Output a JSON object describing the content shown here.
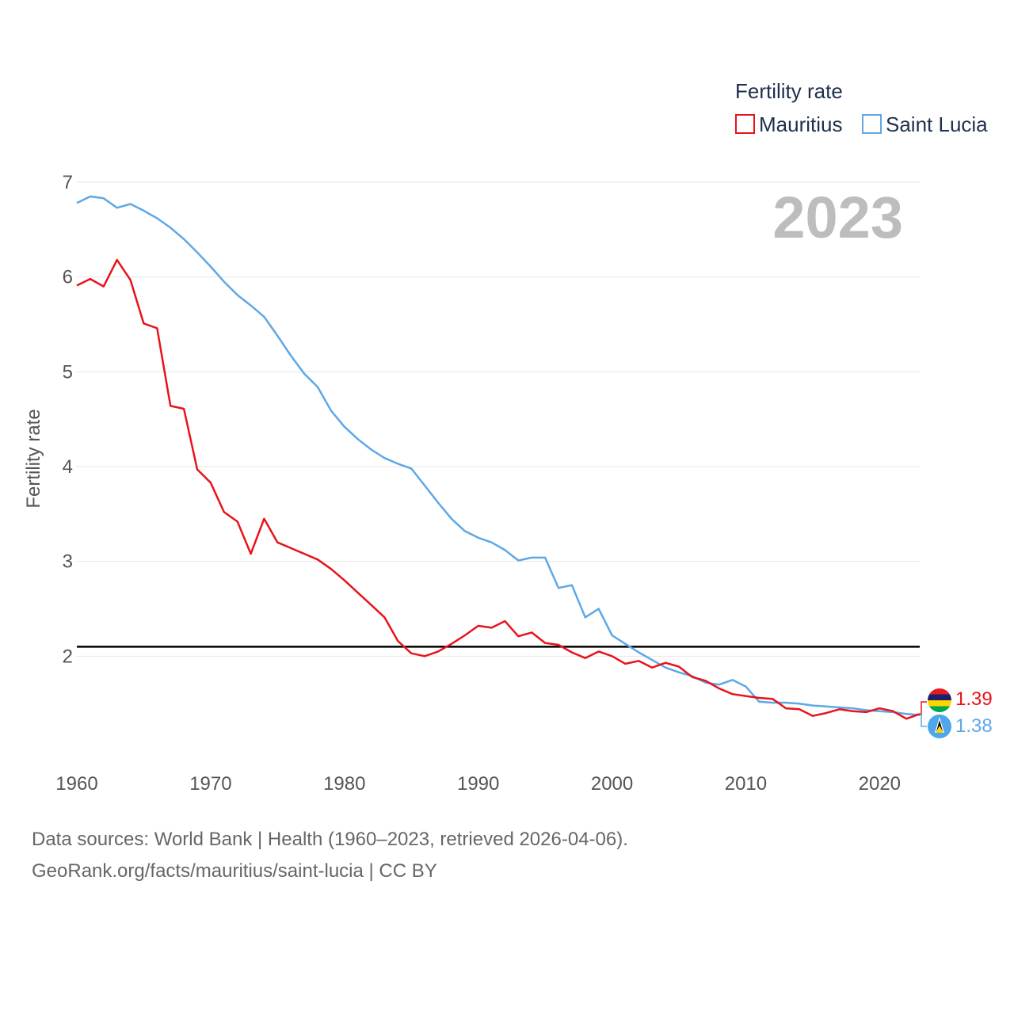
{
  "legend": {
    "title": "Fertility rate",
    "items": [
      {
        "label": "Mauritius",
        "color": "#e8131b"
      },
      {
        "label": "Saint Lucia",
        "color": "#5ea8e6"
      }
    ]
  },
  "year_label": "2023",
  "chart_data": {
    "type": "line",
    "title": "",
    "ylabel": "Fertility rate",
    "xlabel": "",
    "xlim": [
      1960,
      2023
    ],
    "ylim": [
      1,
      7
    ],
    "yticks": [
      2,
      3,
      4,
      5,
      6,
      7
    ],
    "xticks": [
      1960,
      1970,
      1980,
      1990,
      2000,
      2010,
      2020
    ],
    "reference_line": {
      "y": 2.1,
      "color": "#000000"
    },
    "x": [
      1960,
      1961,
      1962,
      1963,
      1964,
      1965,
      1966,
      1967,
      1968,
      1969,
      1970,
      1971,
      1972,
      1973,
      1974,
      1975,
      1976,
      1977,
      1978,
      1979,
      1980,
      1981,
      1982,
      1983,
      1984,
      1985,
      1986,
      1987,
      1988,
      1989,
      1990,
      1991,
      1992,
      1993,
      1994,
      1995,
      1996,
      1997,
      1998,
      1999,
      2000,
      2001,
      2002,
      2003,
      2004,
      2005,
      2006,
      2007,
      2008,
      2009,
      2010,
      2011,
      2012,
      2013,
      2014,
      2015,
      2016,
      2017,
      2018,
      2019,
      2020,
      2021,
      2022,
      2023
    ],
    "series": [
      {
        "name": "Mauritius",
        "color": "#e8131b",
        "end_label": "1.39",
        "values": [
          5.91,
          5.98,
          5.9,
          6.18,
          5.97,
          5.51,
          5.46,
          4.64,
          4.61,
          3.97,
          3.83,
          3.52,
          3.42,
          3.08,
          3.45,
          3.2,
          3.14,
          3.08,
          3.02,
          2.92,
          2.8,
          2.67,
          2.54,
          2.41,
          2.16,
          2.03,
          2.0,
          2.05,
          2.13,
          2.22,
          2.32,
          2.3,
          2.37,
          2.21,
          2.25,
          2.14,
          2.12,
          2.04,
          1.98,
          2.05,
          2.0,
          1.92,
          1.95,
          1.88,
          1.93,
          1.89,
          1.78,
          1.74,
          1.66,
          1.6,
          1.58,
          1.56,
          1.55,
          1.45,
          1.44,
          1.37,
          1.4,
          1.44,
          1.42,
          1.41,
          1.45,
          1.42,
          1.34,
          1.39
        ]
      },
      {
        "name": "Saint Lucia",
        "color": "#5ea8e6",
        "end_label": "1.38",
        "values": [
          6.78,
          6.85,
          6.83,
          6.73,
          6.77,
          6.7,
          6.62,
          6.52,
          6.4,
          6.26,
          6.11,
          5.95,
          5.81,
          5.7,
          5.58,
          5.38,
          5.17,
          4.98,
          4.84,
          4.59,
          4.42,
          4.29,
          4.18,
          4.09,
          4.03,
          3.98,
          3.8,
          3.62,
          3.45,
          3.32,
          3.25,
          3.2,
          3.12,
          3.01,
          3.04,
          3.04,
          2.72,
          2.75,
          2.41,
          2.5,
          2.22,
          2.13,
          2.04,
          1.96,
          1.88,
          1.83,
          1.79,
          1.72,
          1.7,
          1.75,
          1.68,
          1.52,
          1.51,
          1.51,
          1.5,
          1.48,
          1.47,
          1.46,
          1.45,
          1.43,
          1.42,
          1.41,
          1.39,
          1.38
        ]
      }
    ]
  },
  "source": {
    "line1": "Data sources: World Bank | Health (1960–2023, retrieved 2026-04-06).",
    "line2": "GeoRank.org/facts/mauritius/saint-lucia | CC BY"
  }
}
